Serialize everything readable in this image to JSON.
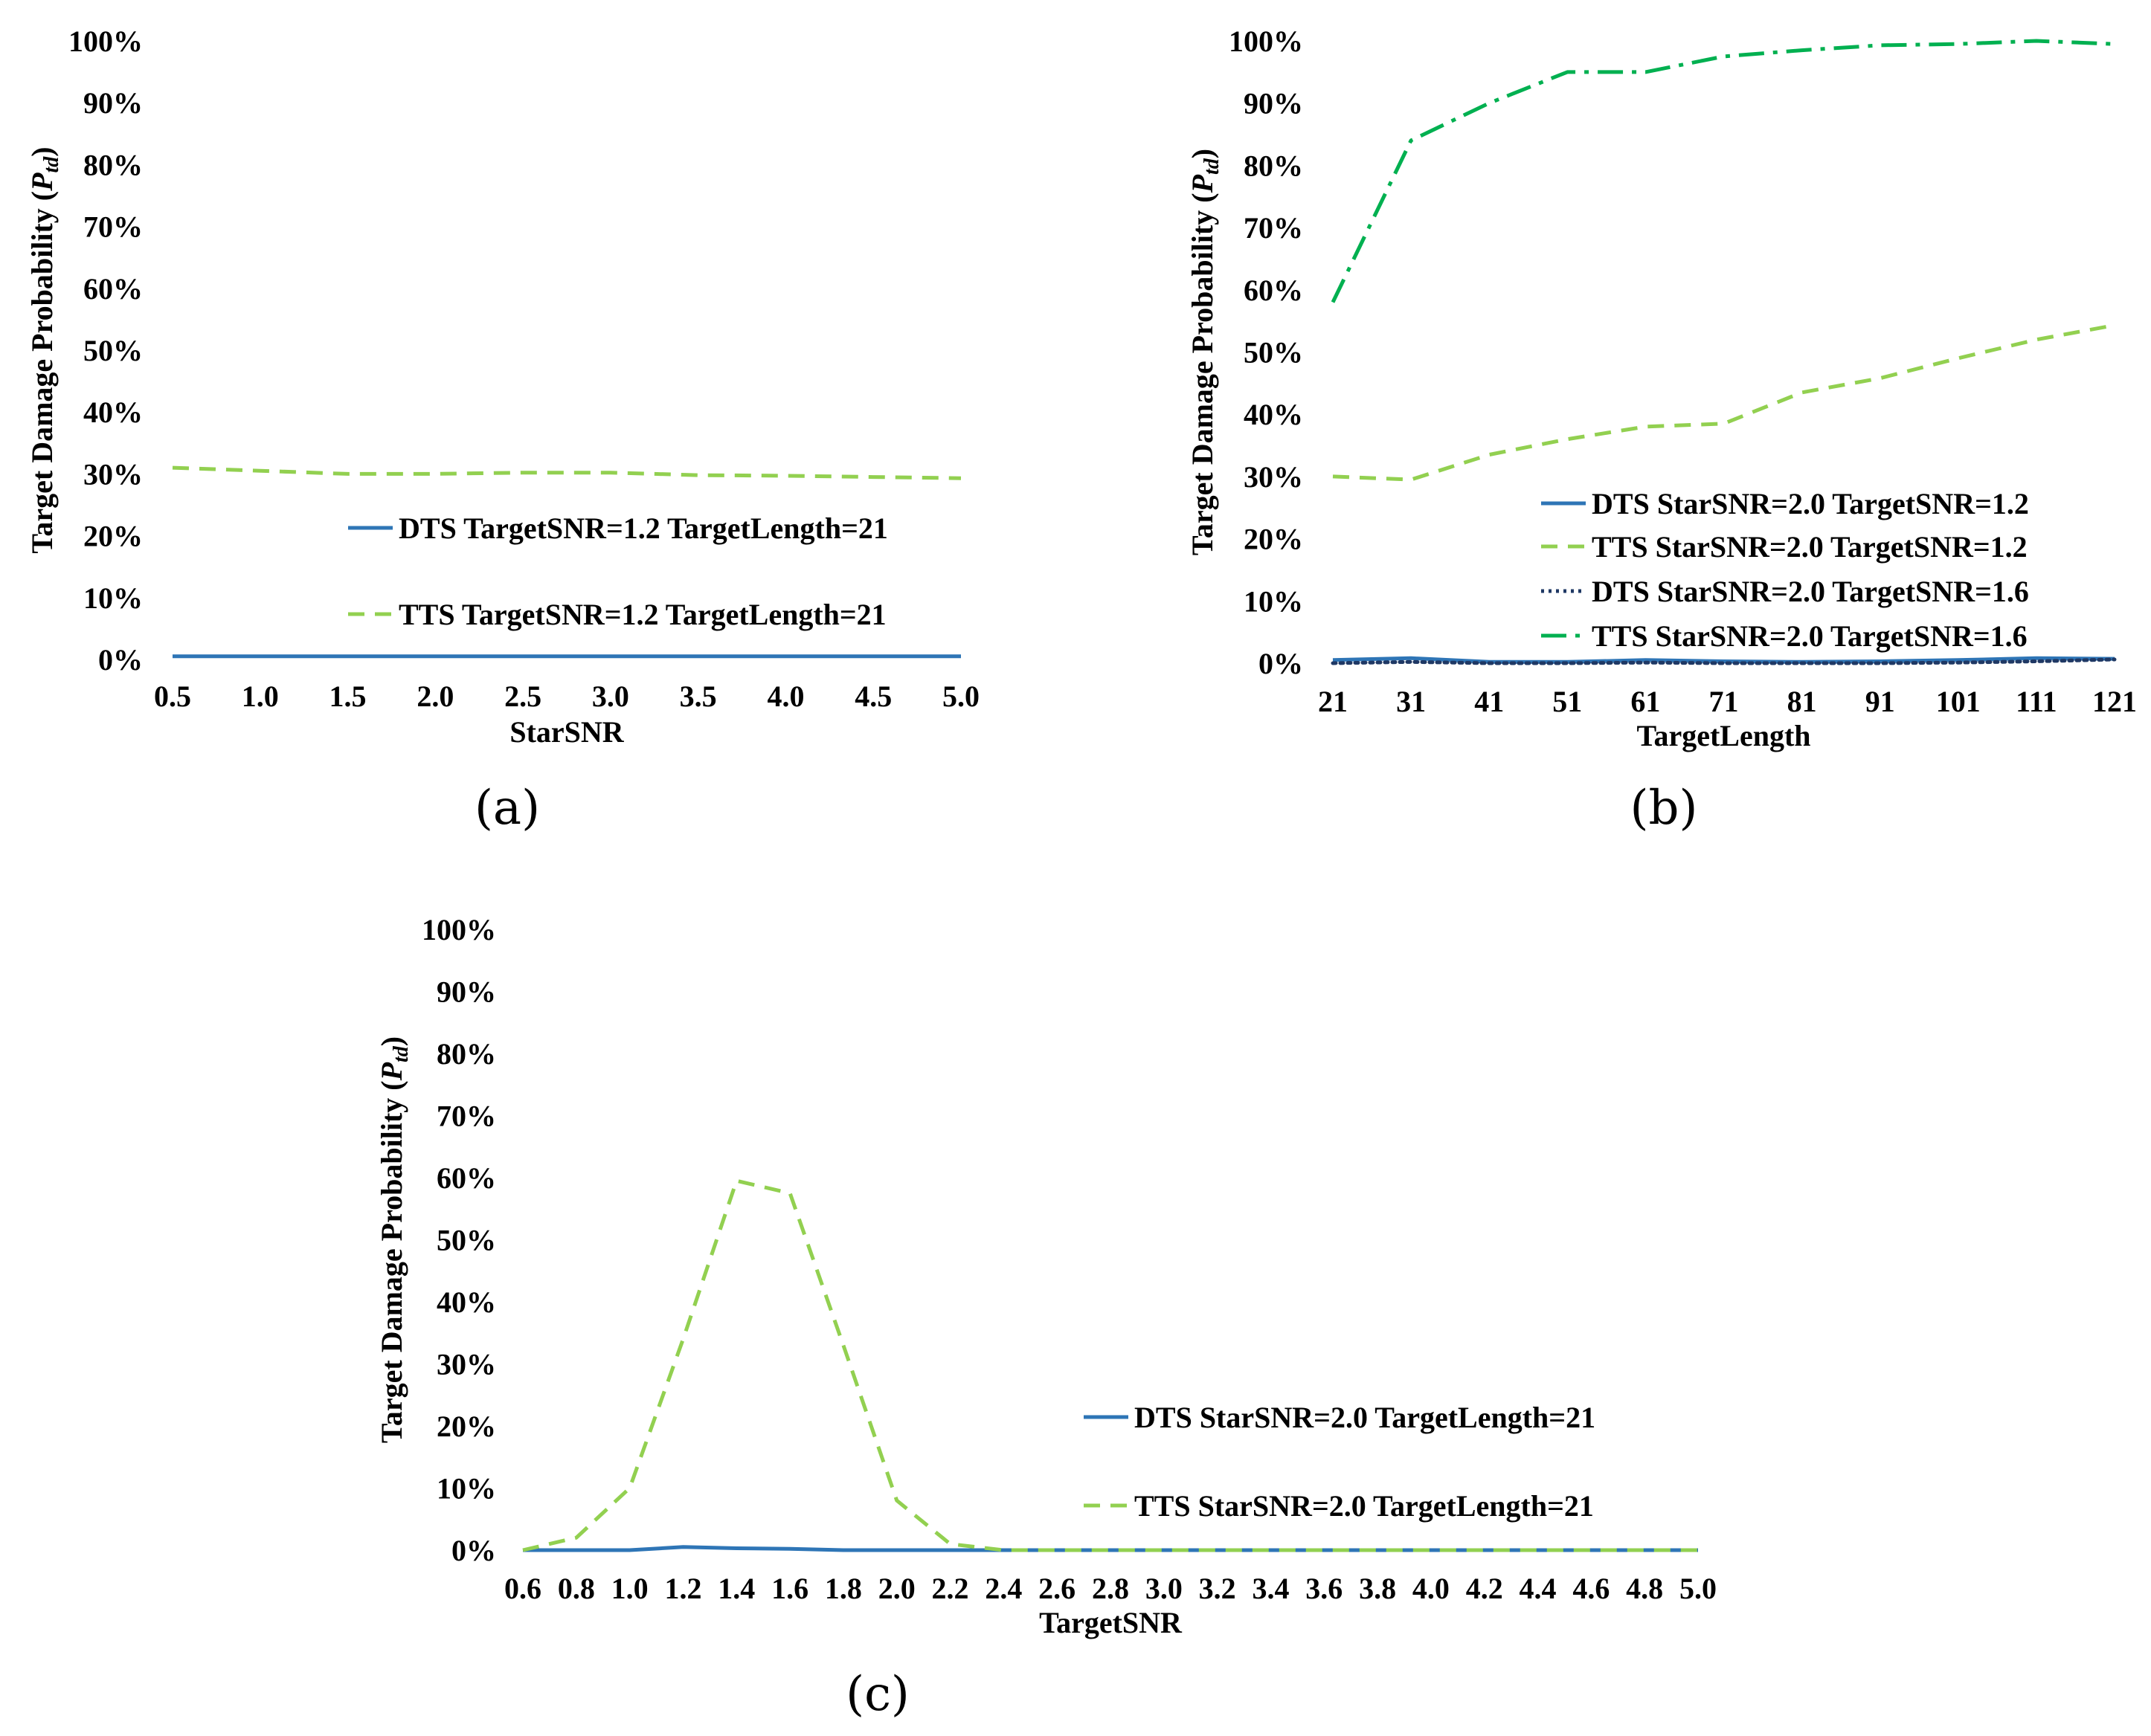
{
  "colors": {
    "dts_blue": "#2e75b6",
    "tts_light_green": "#92d050",
    "dts_navy": "#1f3864",
    "tts_green": "#00b050"
  },
  "chart_data": [
    {
      "id": "a",
      "type": "line",
      "panel_label": "(a)",
      "xlabel": "StarSNR",
      "ylabel": "Target Damage Probability (",
      "ylabel_symbol": "P",
      "ylabel_subscript": "td",
      "ylabel_close": ")",
      "ylim": [
        0,
        100
      ],
      "yticks": [
        "0%",
        "10%",
        "20%",
        "30%",
        "40%",
        "50%",
        "60%",
        "70%",
        "80%",
        "90%",
        "100%"
      ],
      "categories": [
        "0.5",
        "1.0",
        "1.5",
        "2.0",
        "2.5",
        "3.0",
        "3.5",
        "4.0",
        "4.5",
        "5.0"
      ],
      "legend_position": "center-right",
      "series": [
        {
          "name": "DTS TargetSNR=1.2 TargetLength=21",
          "color": "#2e75b6",
          "style": "solid",
          "values": [
            0.5,
            0.5,
            0.5,
            0.5,
            0.5,
            0.5,
            0.5,
            0.5,
            0.5,
            0.5
          ]
        },
        {
          "name": "TTS TargetSNR=1.2 TargetLength=21",
          "color": "#92d050",
          "style": "dash",
          "values": [
            31,
            30.5,
            30,
            30,
            30.2,
            30.2,
            29.8,
            29.7,
            29.5,
            29.3
          ]
        }
      ]
    },
    {
      "id": "b",
      "type": "line",
      "panel_label": "(b)",
      "xlabel": "TargetLength",
      "ylabel": "Target Damage Probability (",
      "ylabel_symbol": "P",
      "ylabel_subscript": "td",
      "ylabel_close": ")",
      "ylim": [
        0,
        100
      ],
      "yticks": [
        "0%",
        "10%",
        "20%",
        "30%",
        "40%",
        "50%",
        "60%",
        "70%",
        "80%",
        "90%",
        "100%"
      ],
      "categories": [
        "21",
        "31",
        "41",
        "51",
        "61",
        "71",
        "81",
        "91",
        "101",
        "111",
        "121"
      ],
      "legend_position": "bottom-right",
      "series": [
        {
          "name": "DTS StarSNR=2.0 TargetSNR=1.2",
          "color": "#2e75b6",
          "style": "solid",
          "values": [
            0.5,
            0.8,
            0.2,
            0.2,
            0.5,
            0.3,
            0.2,
            0.3,
            0.5,
            0.8,
            0.7
          ]
        },
        {
          "name": "TTS StarSNR=2.0 TargetSNR=1.2",
          "color": "#92d050",
          "style": "dash",
          "values": [
            30,
            29.5,
            33.5,
            36,
            38,
            38.5,
            43.5,
            45.8,
            49,
            52,
            54.3
          ]
        },
        {
          "name": "DTS StarSNR=2.0 TargetSNR=1.6",
          "color": "#1f3864",
          "style": "dot",
          "values": [
            0,
            0.2,
            0,
            0,
            0.1,
            0,
            0,
            0,
            0.1,
            0.3,
            0.6
          ]
        },
        {
          "name": "TTS StarSNR=2.0 TargetSNR=1.6",
          "color": "#00b050",
          "style": "dashdot",
          "values": [
            58,
            84,
            90,
            95,
            95,
            97.5,
            98.5,
            99.3,
            99.5,
            100,
            99.5
          ]
        }
      ]
    },
    {
      "id": "c",
      "type": "line",
      "panel_label": "(c)",
      "xlabel": "TargetSNR",
      "ylabel": "Target Damage Probability (",
      "ylabel_symbol": "P",
      "ylabel_subscript": "td",
      "ylabel_close": ")",
      "ylim": [
        0,
        100
      ],
      "yticks": [
        "0%",
        "10%",
        "20%",
        "30%",
        "40%",
        "50%",
        "60%",
        "70%",
        "80%",
        "90%",
        "100%"
      ],
      "categories": [
        "0.6",
        "0.8",
        "1.0",
        "1.2",
        "1.4",
        "1.6",
        "1.8",
        "2.0",
        "2.2",
        "2.4",
        "2.6",
        "2.8",
        "3.0",
        "3.2",
        "3.4",
        "3.6",
        "3.8",
        "4.0",
        "4.2",
        "4.4",
        "4.6",
        "4.8",
        "5.0"
      ],
      "legend_position": "center-right",
      "series": [
        {
          "name": "DTS StarSNR=2.0 TargetLength=21",
          "color": "#2e75b6",
          "style": "solid",
          "values": [
            0,
            0,
            0,
            0.5,
            0.3,
            0.2,
            0,
            0,
            0,
            0,
            0,
            0,
            0,
            0,
            0,
            0,
            0,
            0,
            0,
            0,
            0,
            0,
            0
          ]
        },
        {
          "name": "TTS StarSNR=2.0 TargetLength=21",
          "color": "#92d050",
          "style": "dash",
          "values": [
            0,
            2,
            10,
            34,
            59.5,
            57.5,
            33,
            8,
            1,
            0,
            0,
            0,
            0,
            0,
            0,
            0,
            0,
            0,
            0,
            0,
            0,
            0,
            0
          ]
        }
      ]
    }
  ]
}
